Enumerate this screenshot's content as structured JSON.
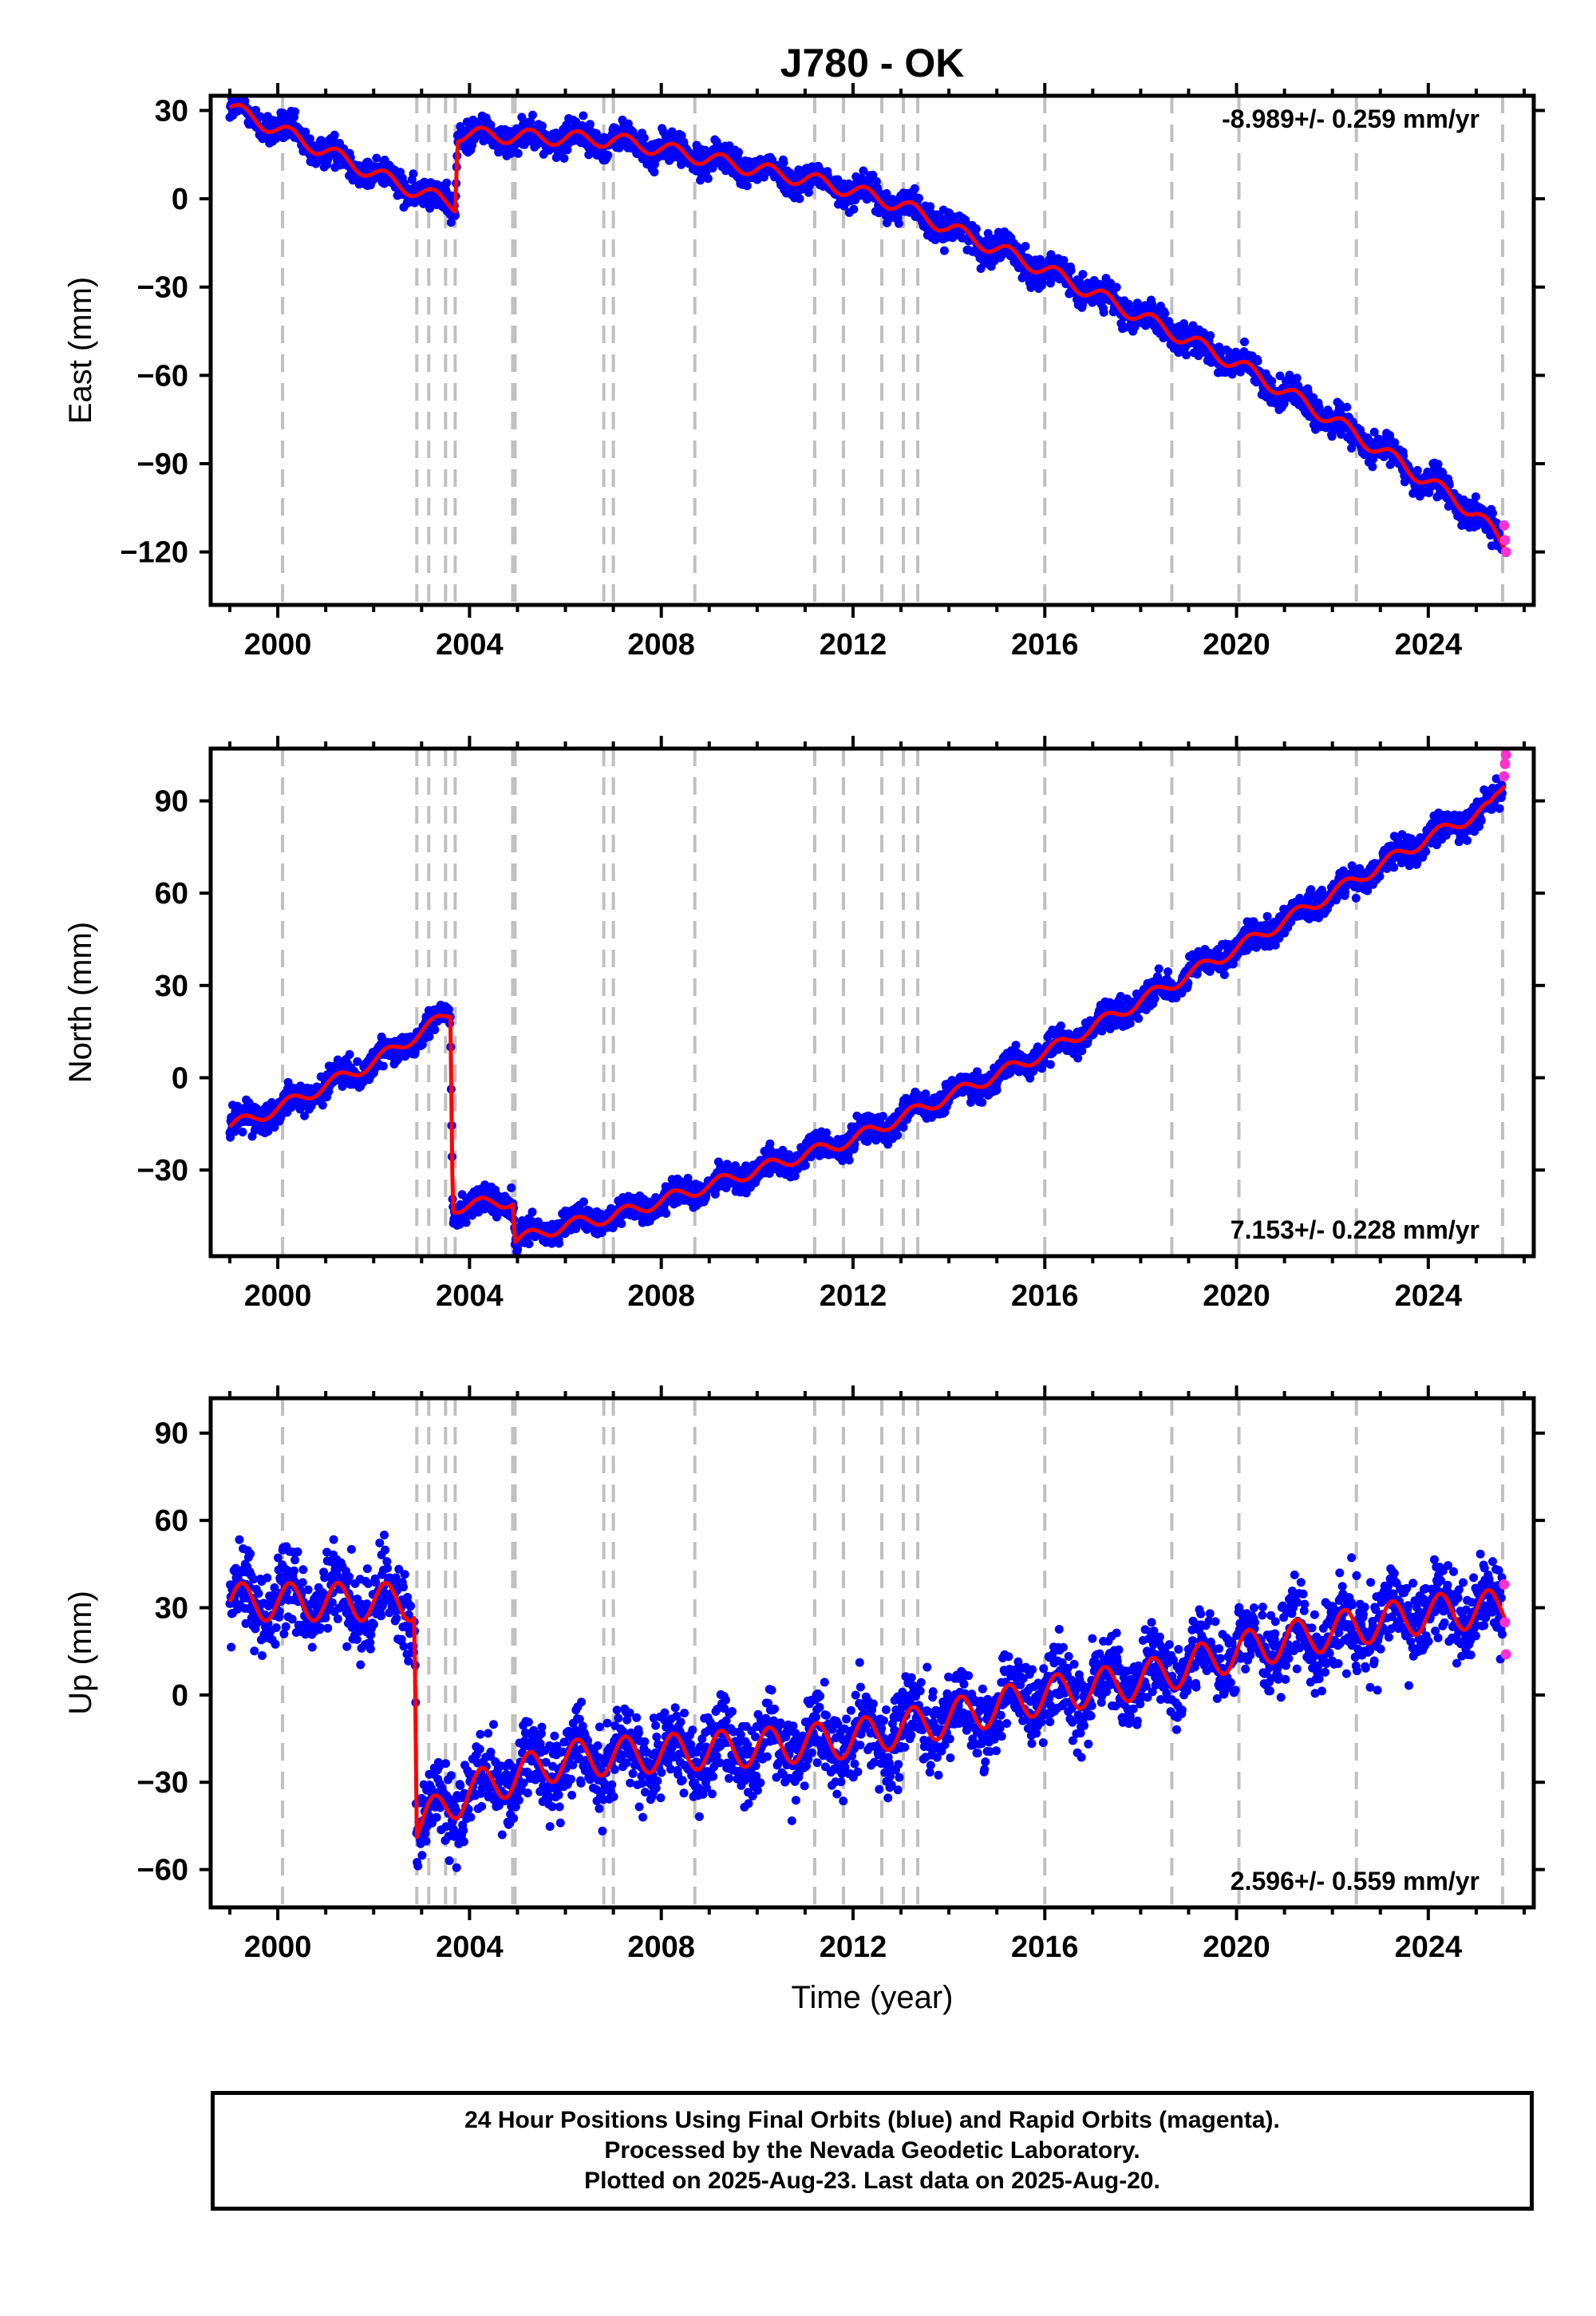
{
  "title": "J780 - OK",
  "footer": {
    "line1": "24 Hour Positions Using Final Orbits (blue) and Rapid Orbits (magenta).",
    "line2": "Processed by the Nevada Geodetic Laboratory.",
    "line3": "Plotted on 2025-Aug-23. Last data on 2025-Aug-20."
  },
  "colors": {
    "final": "#0000ff",
    "rapid": "#ff33cc",
    "model": "#ff0000",
    "steps": "#c0c0c0"
  },
  "chart_data": [
    {
      "type": "scatter",
      "panel": "east",
      "ylabel": "East (mm)",
      "rate_label": "-8.989+/- 0.259 mm/yr",
      "xlim": [
        1998.6,
        2026.2
      ],
      "ylim": [
        -138,
        35
      ],
      "yticks": [
        30,
        0,
        -30,
        -60,
        -90,
        -120
      ],
      "xticks": [
        2000,
        2004,
        2008,
        2012,
        2016,
        2020,
        2024
      ],
      "step_epochs": [
        2000.1,
        2002.9,
        2003.15,
        2003.5,
        2003.7,
        2004.9,
        2004.95,
        2006.8,
        2007.0,
        2008.7,
        2011.2,
        2011.8,
        2012.6,
        2013.05,
        2013.35,
        2016.0,
        2018.65,
        2020.05,
        2022.5,
        2025.55
      ],
      "trend": [
        [
          1999.0,
          31
        ],
        [
          2002.5,
          5
        ],
        [
          2003.7,
          -2
        ],
        [
          2003.75,
          22
        ],
        [
          2007.0,
          20
        ],
        [
          2008.0,
          17
        ],
        [
          2010.0,
          10
        ],
        [
          2011.5,
          5
        ],
        [
          2013.0,
          -2
        ],
        [
          2014.0,
          -10
        ],
        [
          2016.0,
          -24
        ],
        [
          2018.0,
          -40
        ],
        [
          2020.0,
          -56
        ],
        [
          2022.0,
          -75
        ],
        [
          2024.0,
          -96
        ],
        [
          2025.0,
          -107
        ],
        [
          2025.6,
          -118
        ]
      ],
      "seasonal_amp": 2.5,
      "scatter": 2.5,
      "rapid": [
        [
          2025.58,
          -111
        ],
        [
          2025.6,
          -116
        ],
        [
          2025.62,
          -120
        ]
      ]
    },
    {
      "type": "scatter",
      "panel": "north",
      "ylabel": "North (mm)",
      "rate_label": "7.153+/- 0.228 mm/yr",
      "xlim": [
        1998.6,
        2026.2
      ],
      "ylim": [
        -58,
        107
      ],
      "yticks": [
        90,
        60,
        30,
        0,
        -30
      ],
      "xticks": [
        2000,
        2004,
        2008,
        2012,
        2016,
        2020,
        2024
      ],
      "step_epochs": [
        2000.1,
        2002.9,
        2003.15,
        2003.5,
        2003.7,
        2004.9,
        2004.95,
        2006.8,
        2007.0,
        2008.7,
        2011.2,
        2011.8,
        2012.6,
        2013.05,
        2013.35,
        2016.0,
        2018.65,
        2020.05,
        2022.5,
        2025.55
      ],
      "trend": [
        [
          1999.0,
          -16
        ],
        [
          2000.0,
          -10
        ],
        [
          2002.0,
          5
        ],
        [
          2003.6,
          21
        ],
        [
          2003.65,
          -42
        ],
        [
          2004.9,
          -40
        ],
        [
          2004.95,
          -53
        ],
        [
          2006.0,
          -48
        ],
        [
          2007.0,
          -45
        ],
        [
          2008.0,
          -40
        ],
        [
          2010.0,
          -30
        ],
        [
          2012.0,
          -20
        ],
        [
          2014.0,
          -6
        ],
        [
          2016.0,
          8
        ],
        [
          2018.0,
          25
        ],
        [
          2020.0,
          42
        ],
        [
          2022.0,
          60
        ],
        [
          2024.0,
          78
        ],
        [
          2025.3,
          88
        ],
        [
          2025.6,
          96
        ]
      ],
      "seasonal_amp": 2.0,
      "scatter": 2.2,
      "rapid": [
        [
          2025.58,
          98
        ],
        [
          2025.6,
          102
        ],
        [
          2025.62,
          105
        ]
      ]
    },
    {
      "type": "scatter",
      "panel": "up",
      "ylabel": "Up (mm)",
      "xlabel": "Time (year)",
      "rate_label": "2.596+/- 0.559 mm/yr",
      "xlim": [
        1998.6,
        2026.2
      ],
      "ylim": [
        -73,
        102
      ],
      "yticks": [
        90,
        60,
        30,
        0,
        -30,
        -60
      ],
      "xticks": [
        2000,
        2004,
        2008,
        2012,
        2016,
        2020,
        2024
      ],
      "step_epochs": [
        2000.1,
        2002.9,
        2003.15,
        2003.5,
        2003.7,
        2004.9,
        2004.95,
        2006.8,
        2007.0,
        2008.7,
        2011.2,
        2011.8,
        2012.6,
        2013.05,
        2013.35,
        2016.0,
        2018.65,
        2020.05,
        2022.5,
        2025.55
      ],
      "trend": [
        [
          1999.0,
          32
        ],
        [
          2002.85,
          32
        ],
        [
          2002.9,
          -45
        ],
        [
          2004.0,
          -33
        ],
        [
          2006.0,
          -22
        ],
        [
          2008.0,
          -20
        ],
        [
          2010.0,
          -18
        ],
        [
          2012.0,
          -15
        ],
        [
          2014.0,
          -8
        ],
        [
          2016.0,
          0
        ],
        [
          2018.0,
          5
        ],
        [
          2020.0,
          15
        ],
        [
          2022.0,
          22
        ],
        [
          2024.0,
          28
        ],
        [
          2025.6,
          30
        ]
      ],
      "seasonal_amp": 6.5,
      "scatter": 7.0,
      "rapid": [
        [
          2025.58,
          38
        ],
        [
          2025.6,
          25
        ],
        [
          2025.62,
          14
        ]
      ]
    }
  ]
}
